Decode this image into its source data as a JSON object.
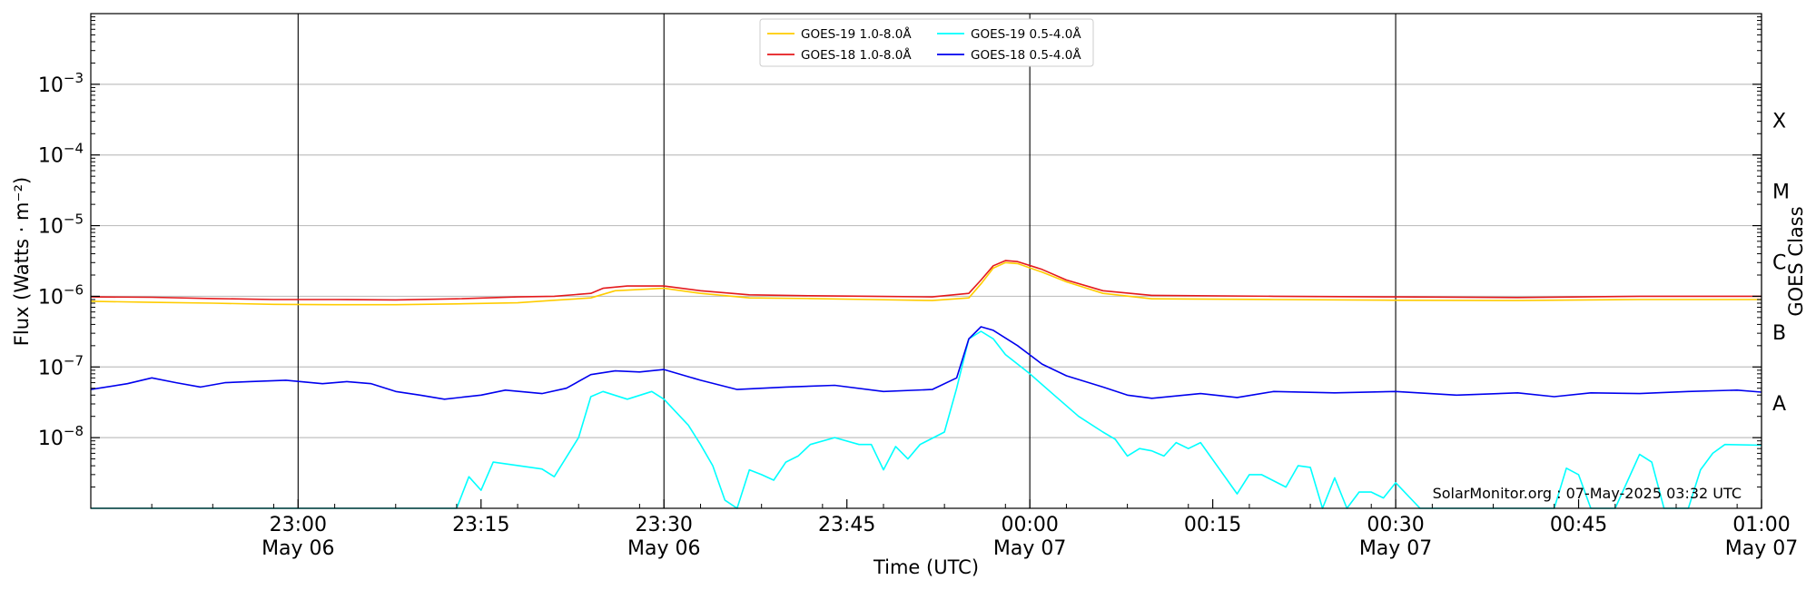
{
  "chart_data": {
    "type": "line",
    "xlabel": "Time (UTC)",
    "ylabel": "Flux (Watts · m⁻²)",
    "y2label": "GOES Class",
    "x_range": [
      "2025-05-06 22:43",
      "2025-05-07 01:00"
    ],
    "ylim": [
      1e-09,
      0.01
    ],
    "y_scale": "log",
    "grid": true,
    "legend_position": "top-center",
    "x_ticks": [
      {
        "time": "2025-05-06 23:00",
        "line1": "23:00",
        "line2": "May 06"
      },
      {
        "time": "2025-05-06 23:15",
        "line1": "23:15",
        "line2": ""
      },
      {
        "time": "2025-05-06 23:30",
        "line1": "23:30",
        "line2": "May 06"
      },
      {
        "time": "2025-05-06 23:45",
        "line1": "23:45",
        "line2": ""
      },
      {
        "time": "2025-05-07 00:00",
        "line1": "00:00",
        "line2": "May 07"
      },
      {
        "time": "2025-05-07 00:15",
        "line1": "00:15",
        "line2": ""
      },
      {
        "time": "2025-05-07 00:30",
        "line1": "00:30",
        "line2": "May 07"
      },
      {
        "time": "2025-05-07 00:45",
        "line1": "00:45",
        "line2": ""
      },
      {
        "time": "2025-05-07 01:00",
        "line1": "01:00",
        "line2": "May 07"
      }
    ],
    "y_ticks": [
      {
        "value": 1e-08,
        "base": "10",
        "exp": "−8"
      },
      {
        "value": 1e-07,
        "base": "10",
        "exp": "−7"
      },
      {
        "value": 1e-06,
        "base": "10",
        "exp": "−6"
      },
      {
        "value": 1e-05,
        "base": "10",
        "exp": "−5"
      },
      {
        "value": 0.0001,
        "base": "10",
        "exp": "−4"
      },
      {
        "value": 0.001,
        "base": "10",
        "exp": "−3"
      }
    ],
    "class_labels": [
      {
        "value": 3e-08,
        "label": "A"
      },
      {
        "value": 3e-07,
        "label": "B"
      },
      {
        "value": 3e-06,
        "label": "C"
      },
      {
        "value": 3e-05,
        "label": "M"
      },
      {
        "value": 0.0003,
        "label": "X"
      }
    ],
    "vertical_lines": [
      "2025-05-06 23:00",
      "2025-05-06 23:30",
      "2025-05-07 00:00",
      "2025-05-07 00:30",
      "2025-05-07 01:00"
    ],
    "series": [
      {
        "name": "GOES-19 1.0-8.0Å",
        "color": "#ffcc00",
        "points": [
          [
            "2025-05-06 22:43",
            8.5e-07
          ],
          [
            "2025-05-06 22:48",
            8.2e-07
          ],
          [
            "2025-05-06 22:53",
            8e-07
          ],
          [
            "2025-05-06 22:58",
            7.7e-07
          ],
          [
            "2025-05-06 23:03",
            7.6e-07
          ],
          [
            "2025-05-06 23:08",
            7.6e-07
          ],
          [
            "2025-05-06 23:13",
            7.8e-07
          ],
          [
            "2025-05-06 23:18",
            8.1e-07
          ],
          [
            "2025-05-06 23:21",
            8.8e-07
          ],
          [
            "2025-05-06 23:24",
            9.5e-07
          ],
          [
            "2025-05-06 23:26",
            1.2e-06
          ],
          [
            "2025-05-06 23:30",
            1.3e-06
          ],
          [
            "2025-05-06 23:33",
            1.1e-06
          ],
          [
            "2025-05-06 23:37",
            9.5e-07
          ],
          [
            "2025-05-06 23:42",
            9.3e-07
          ],
          [
            "2025-05-06 23:47",
            9e-07
          ],
          [
            "2025-05-06 23:52",
            8.7e-07
          ],
          [
            "2025-05-06 23:55",
            9.5e-07
          ],
          [
            "2025-05-06 23:56",
            1.5e-06
          ],
          [
            "2025-05-06 23:57",
            2.5e-06
          ],
          [
            "2025-05-06 23:58",
            3e-06
          ],
          [
            "2025-05-06 23:59",
            2.9e-06
          ],
          [
            "2025-05-07 00:01",
            2.2e-06
          ],
          [
            "2025-05-07 00:03",
            1.6e-06
          ],
          [
            "2025-05-07 00:06",
            1.1e-06
          ],
          [
            "2025-05-07 00:10",
            9.2e-07
          ],
          [
            "2025-05-07 00:20",
            9e-07
          ],
          [
            "2025-05-07 00:30",
            8.8e-07
          ],
          [
            "2025-05-07 00:40",
            8.7e-07
          ],
          [
            "2025-05-07 00:50",
            9e-07
          ],
          [
            "2025-05-07 01:00",
            9e-07
          ]
        ]
      },
      {
        "name": "GOES-18 1.0-8.0Å",
        "color": "#e41a1c",
        "points": [
          [
            "2025-05-06 22:43",
            9.8e-07
          ],
          [
            "2025-05-06 22:48",
            9.7e-07
          ],
          [
            "2025-05-06 22:53",
            9.3e-07
          ],
          [
            "2025-05-06 22:58",
            9e-07
          ],
          [
            "2025-05-06 23:03",
            9e-07
          ],
          [
            "2025-05-06 23:08",
            8.9e-07
          ],
          [
            "2025-05-06 23:13",
            9.2e-07
          ],
          [
            "2025-05-06 23:18",
            9.8e-07
          ],
          [
            "2025-05-06 23:21",
            1e-06
          ],
          [
            "2025-05-06 23:24",
            1.1e-06
          ],
          [
            "2025-05-06 23:25",
            1.3e-06
          ],
          [
            "2025-05-06 23:27",
            1.4e-06
          ],
          [
            "2025-05-06 23:30",
            1.4e-06
          ],
          [
            "2025-05-06 23:33",
            1.2e-06
          ],
          [
            "2025-05-06 23:37",
            1.05e-06
          ],
          [
            "2025-05-06 23:42",
            1.02e-06
          ],
          [
            "2025-05-06 23:47",
            1e-06
          ],
          [
            "2025-05-06 23:52",
            9.8e-07
          ],
          [
            "2025-05-06 23:55",
            1.1e-06
          ],
          [
            "2025-05-06 23:56",
            1.7e-06
          ],
          [
            "2025-05-06 23:57",
            2.7e-06
          ],
          [
            "2025-05-06 23:58",
            3.2e-06
          ],
          [
            "2025-05-06 23:59",
            3.1e-06
          ],
          [
            "2025-05-07 00:01",
            2.4e-06
          ],
          [
            "2025-05-07 00:03",
            1.7e-06
          ],
          [
            "2025-05-07 00:06",
            1.2e-06
          ],
          [
            "2025-05-07 00:10",
            1.03e-06
          ],
          [
            "2025-05-07 00:20",
            1e-06
          ],
          [
            "2025-05-07 00:30",
            9.8e-07
          ],
          [
            "2025-05-07 00:40",
            9.6e-07
          ],
          [
            "2025-05-07 00:50",
            1e-06
          ],
          [
            "2025-05-07 01:00",
            1e-06
          ]
        ]
      },
      {
        "name": "GOES-19 0.5-4.0Å",
        "color": "#00ffff",
        "points": [
          [
            "2025-05-06 22:43",
            1e-09
          ],
          [
            "2025-05-06 23:13",
            1e-09
          ],
          [
            "2025-05-06 23:14",
            2.8e-09
          ],
          [
            "2025-05-06 23:15",
            1.8e-09
          ],
          [
            "2025-05-06 23:16",
            4.5e-09
          ],
          [
            "2025-05-06 23:20",
            3.6e-09
          ],
          [
            "2025-05-06 23:21",
            2.8e-09
          ],
          [
            "2025-05-06 23:23",
            1e-08
          ],
          [
            "2025-05-06 23:24",
            3.8e-08
          ],
          [
            "2025-05-06 23:25",
            4.5e-08
          ],
          [
            "2025-05-06 23:27",
            3.5e-08
          ],
          [
            "2025-05-06 23:29",
            4.5e-08
          ],
          [
            "2025-05-06 23:30",
            3.5e-08
          ],
          [
            "2025-05-06 23:32",
            1.5e-08
          ],
          [
            "2025-05-06 23:33",
            8e-09
          ],
          [
            "2025-05-06 23:34",
            4e-09
          ],
          [
            "2025-05-06 23:35",
            1.3e-09
          ],
          [
            "2025-05-06 23:36",
            1e-09
          ],
          [
            "2025-05-06 23:37",
            3.5e-09
          ],
          [
            "2025-05-06 23:38",
            3e-09
          ],
          [
            "2025-05-06 23:39",
            2.5e-09
          ],
          [
            "2025-05-06 23:40",
            4.5e-09
          ],
          [
            "2025-05-06 23:41",
            5.5e-09
          ],
          [
            "2025-05-06 23:42",
            8e-09
          ],
          [
            "2025-05-06 23:44",
            1e-08
          ],
          [
            "2025-05-06 23:46",
            8e-09
          ],
          [
            "2025-05-06 23:47",
            8e-09
          ],
          [
            "2025-05-06 23:48",
            3.5e-09
          ],
          [
            "2025-05-06 23:49",
            7.5e-09
          ],
          [
            "2025-05-06 23:50",
            5e-09
          ],
          [
            "2025-05-06 23:51",
            8e-09
          ],
          [
            "2025-05-06 23:53",
            1.2e-08
          ],
          [
            "2025-05-06 23:54",
            5e-08
          ],
          [
            "2025-05-06 23:55",
            2.5e-07
          ],
          [
            "2025-05-06 23:56",
            3.2e-07
          ],
          [
            "2025-05-06 23:57",
            2.5e-07
          ],
          [
            "2025-05-06 23:58",
            1.5e-07
          ],
          [
            "2025-05-07 00:00",
            8e-08
          ],
          [
            "2025-05-07 00:02",
            4e-08
          ],
          [
            "2025-05-07 00:04",
            2e-08
          ],
          [
            "2025-05-07 00:06",
            1.2e-08
          ],
          [
            "2025-05-07 00:07",
            9.5e-09
          ],
          [
            "2025-05-07 00:08",
            5.5e-09
          ],
          [
            "2025-05-07 00:09",
            7e-09
          ],
          [
            "2025-05-07 00:10",
            6.5e-09
          ],
          [
            "2025-05-07 00:11",
            5.5e-09
          ],
          [
            "2025-05-07 00:12",
            8.5e-09
          ],
          [
            "2025-05-07 00:13",
            7e-09
          ],
          [
            "2025-05-07 00:14",
            8.5e-09
          ],
          [
            "2025-05-07 00:17",
            1.6e-09
          ],
          [
            "2025-05-07 00:18",
            3e-09
          ],
          [
            "2025-05-07 00:19",
            3e-09
          ],
          [
            "2025-05-07 00:21",
            2e-09
          ],
          [
            "2025-05-07 00:22",
            4e-09
          ],
          [
            "2025-05-07 00:23",
            3.8e-09
          ],
          [
            "2025-05-07 00:24",
            1e-09
          ],
          [
            "2025-05-07 00:25",
            2.7e-09
          ],
          [
            "2025-05-07 00:26",
            1e-09
          ],
          [
            "2025-05-07 00:27",
            1.7e-09
          ],
          [
            "2025-05-07 00:28",
            1.7e-09
          ],
          [
            "2025-05-07 00:29",
            1.4e-09
          ],
          [
            "2025-05-07 00:30",
            2.3e-09
          ],
          [
            "2025-05-07 00:32",
            1e-09
          ],
          [
            "2025-05-07 00:43",
            1e-09
          ],
          [
            "2025-05-07 00:44",
            3.7e-09
          ],
          [
            "2025-05-07 00:45",
            3e-09
          ],
          [
            "2025-05-07 00:46",
            1e-09
          ],
          [
            "2025-05-07 00:48",
            1e-09
          ],
          [
            "2025-05-07 00:50",
            5.8e-09
          ],
          [
            "2025-05-07 00:51",
            4.5e-09
          ],
          [
            "2025-05-07 00:52",
            1e-09
          ],
          [
            "2025-05-07 00:54",
            1e-09
          ],
          [
            "2025-05-07 00:55",
            3.5e-09
          ],
          [
            "2025-05-07 00:56",
            6e-09
          ],
          [
            "2025-05-07 00:57",
            8e-09
          ],
          [
            "2025-05-07 01:00",
            7.8e-09
          ]
        ]
      },
      {
        "name": "GOES-18 0.5-4.0Å",
        "color": "#0000ee",
        "points": [
          [
            "2025-05-06 22:43",
            4.8e-08
          ],
          [
            "2025-05-06 22:46",
            5.8e-08
          ],
          [
            "2025-05-06 22:48",
            7e-08
          ],
          [
            "2025-05-06 22:50",
            6e-08
          ],
          [
            "2025-05-06 22:52",
            5.2e-08
          ],
          [
            "2025-05-06 22:54",
            6e-08
          ],
          [
            "2025-05-06 22:56",
            6.2e-08
          ],
          [
            "2025-05-06 22:59",
            6.5e-08
          ],
          [
            "2025-05-06 23:02",
            5.8e-08
          ],
          [
            "2025-05-06 23:04",
            6.2e-08
          ],
          [
            "2025-05-06 23:06",
            5.8e-08
          ],
          [
            "2025-05-06 23:08",
            4.5e-08
          ],
          [
            "2025-05-06 23:10",
            4e-08
          ],
          [
            "2025-05-06 23:12",
            3.5e-08
          ],
          [
            "2025-05-06 23:15",
            4e-08
          ],
          [
            "2025-05-06 23:17",
            4.7e-08
          ],
          [
            "2025-05-06 23:20",
            4.2e-08
          ],
          [
            "2025-05-06 23:22",
            5e-08
          ],
          [
            "2025-05-06 23:24",
            7.8e-08
          ],
          [
            "2025-05-06 23:26",
            8.8e-08
          ],
          [
            "2025-05-06 23:28",
            8.5e-08
          ],
          [
            "2025-05-06 23:30",
            9.2e-08
          ],
          [
            "2025-05-06 23:33",
            6.5e-08
          ],
          [
            "2025-05-06 23:36",
            4.8e-08
          ],
          [
            "2025-05-06 23:40",
            5.2e-08
          ],
          [
            "2025-05-06 23:44",
            5.5e-08
          ],
          [
            "2025-05-06 23:48",
            4.5e-08
          ],
          [
            "2025-05-06 23:52",
            4.8e-08
          ],
          [
            "2025-05-06 23:54",
            7e-08
          ],
          [
            "2025-05-06 23:55",
            2.5e-07
          ],
          [
            "2025-05-06 23:56",
            3.7e-07
          ],
          [
            "2025-05-06 23:57",
            3.3e-07
          ],
          [
            "2025-05-06 23:59",
            2e-07
          ],
          [
            "2025-05-07 00:01",
            1.1e-07
          ],
          [
            "2025-05-07 00:03",
            7.5e-08
          ],
          [
            "2025-05-07 00:06",
            5.2e-08
          ],
          [
            "2025-05-07 00:08",
            4e-08
          ],
          [
            "2025-05-07 00:10",
            3.6e-08
          ],
          [
            "2025-05-07 00:14",
            4.2e-08
          ],
          [
            "2025-05-07 00:17",
            3.7e-08
          ],
          [
            "2025-05-07 00:20",
            4.5e-08
          ],
          [
            "2025-05-07 00:25",
            4.3e-08
          ],
          [
            "2025-05-07 00:30",
            4.5e-08
          ],
          [
            "2025-05-07 00:35",
            4e-08
          ],
          [
            "2025-05-07 00:40",
            4.3e-08
          ],
          [
            "2025-05-07 00:43",
            3.8e-08
          ],
          [
            "2025-05-07 00:46",
            4.3e-08
          ],
          [
            "2025-05-07 00:50",
            4.2e-08
          ],
          [
            "2025-05-07 00:54",
            4.5e-08
          ],
          [
            "2025-05-07 00:58",
            4.7e-08
          ],
          [
            "2025-05-07 01:00",
            4.4e-08
          ]
        ]
      }
    ]
  },
  "credit": "SolarMonitor.org : 07-May-2025 03:32 UTC"
}
